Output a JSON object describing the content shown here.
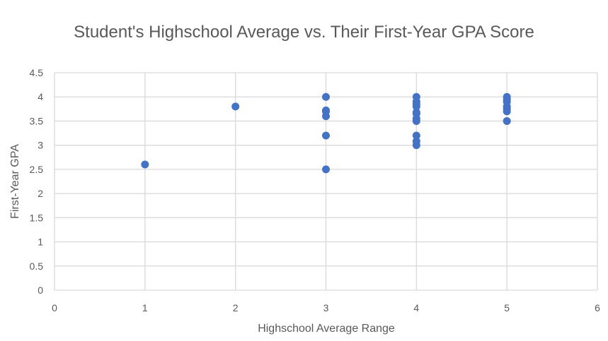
{
  "chart_data": {
    "type": "scatter",
    "title": "Student's Highschool Average vs. Their First-Year GPA Score",
    "xlabel": "Highschool Average Range",
    "ylabel": "First-Year GPA",
    "xlim": [
      0,
      6
    ],
    "ylim": [
      0,
      4.5
    ],
    "xticks": [
      0,
      1,
      2,
      3,
      4,
      5,
      6
    ],
    "yticks": [
      0,
      0.5,
      1,
      1.5,
      2,
      2.5,
      3,
      3.5,
      4,
      4.5
    ],
    "grid": true,
    "legend": "none",
    "marker_color": "#4472c4",
    "points": [
      {
        "x": 1,
        "y": 2.6
      },
      {
        "x": 2,
        "y": 3.8
      },
      {
        "x": 3,
        "y": 4.0
      },
      {
        "x": 3,
        "y": 3.72
      },
      {
        "x": 3,
        "y": 3.7
      },
      {
        "x": 3,
        "y": 3.6
      },
      {
        "x": 3,
        "y": 3.2
      },
      {
        "x": 3,
        "y": 2.5
      },
      {
        "x": 4,
        "y": 4.0
      },
      {
        "x": 4,
        "y": 3.9
      },
      {
        "x": 4,
        "y": 3.85
      },
      {
        "x": 4,
        "y": 3.8
      },
      {
        "x": 4,
        "y": 3.68
      },
      {
        "x": 4,
        "y": 3.65
      },
      {
        "x": 4,
        "y": 3.55
      },
      {
        "x": 4,
        "y": 3.5
      },
      {
        "x": 4,
        "y": 3.2
      },
      {
        "x": 4,
        "y": 3.08
      },
      {
        "x": 4,
        "y": 3.0
      },
      {
        "x": 5,
        "y": 4.0
      },
      {
        "x": 5,
        "y": 3.95
      },
      {
        "x": 5,
        "y": 3.9
      },
      {
        "x": 5,
        "y": 3.8
      },
      {
        "x": 5,
        "y": 3.75
      },
      {
        "x": 5,
        "y": 3.7
      },
      {
        "x": 5,
        "y": 3.5
      }
    ]
  }
}
